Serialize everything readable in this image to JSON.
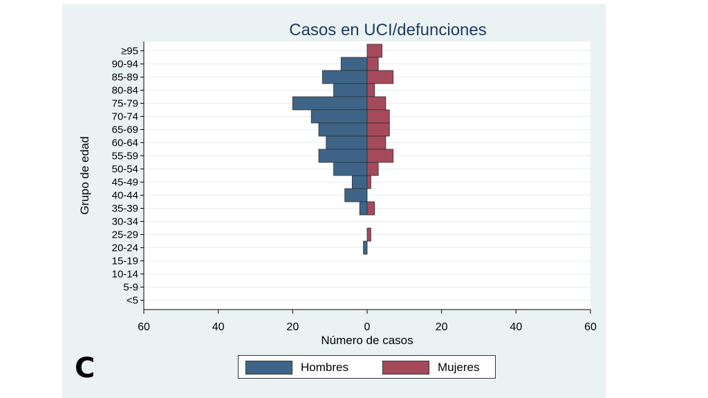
{
  "panel_label": "C",
  "colors": {
    "hombres": "#3e6587",
    "mujeres": "#a54a5b",
    "background": "#eaf2f3",
    "plot_bg": "#ffffff",
    "grid": "#e6ecef"
  },
  "chart_data": {
    "type": "bar",
    "orientation": "horizontal-population-pyramid",
    "title": "Casos en UCI/defunciones",
    "xlabel": "Número de casos",
    "ylabel": "Grupo de edad",
    "xlim": [
      -60,
      60
    ],
    "xticks": [
      -60,
      -40,
      -20,
      0,
      20,
      40,
      60
    ],
    "xtick_labels": [
      "60",
      "40",
      "20",
      "0",
      "20",
      "40",
      "60"
    ],
    "categories": [
      "≥95",
      "90-94",
      "85-89",
      "80-84",
      "75-79",
      "70-74",
      "65-69",
      "60-64",
      "55-59",
      "50-54",
      "45-49",
      "40-44",
      "35-39",
      "30-34",
      "25-29",
      "20-24",
      "15-19",
      "10-14",
      "5-9",
      "<5"
    ],
    "series": [
      {
        "name": "Hombres",
        "values": [
          0,
          7,
          12,
          9,
          20,
          15,
          13,
          11,
          13,
          9,
          4,
          6,
          2,
          0,
          0,
          1,
          0,
          0,
          0,
          0
        ]
      },
      {
        "name": "Mujeres",
        "values": [
          4,
          3,
          7,
          2,
          5,
          6,
          6,
          5,
          7,
          3,
          1,
          0,
          2,
          0,
          1,
          0,
          0,
          0,
          0,
          0
        ]
      }
    ],
    "grid": true,
    "legend": "bottom"
  }
}
